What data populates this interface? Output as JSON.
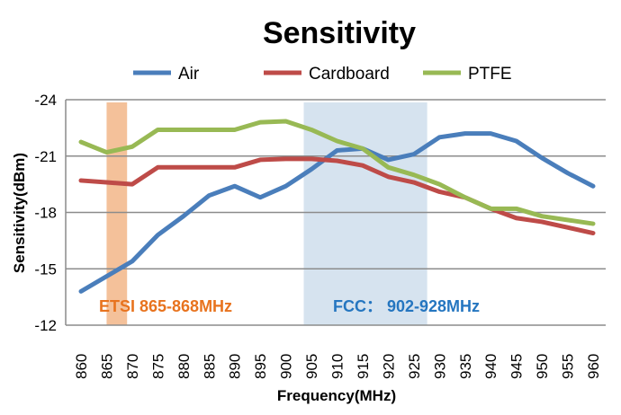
{
  "chart_data": {
    "type": "line",
    "title": "Sensitivity",
    "xlabel": "Frequency(MHz)",
    "ylabel": "Sensitivity(dBm)",
    "x": [
      860,
      865,
      870,
      875,
      880,
      885,
      890,
      895,
      900,
      905,
      910,
      915,
      920,
      925,
      930,
      935,
      940,
      945,
      950,
      955,
      960
    ],
    "x_tick_labels": [
      "860",
      "865",
      "870",
      "875",
      "880",
      "885",
      "890",
      "895",
      "900",
      "905",
      "910",
      "915",
      "920",
      "925",
      "930",
      "935",
      "940",
      "945",
      "950",
      "955",
      "960"
    ],
    "y_ticks": [
      -24,
      -21,
      -18,
      -15,
      -12
    ],
    "y_tick_labels": [
      "-24",
      "-21",
      "-18",
      "-15",
      "-12"
    ],
    "ylim": [
      -12,
      -24
    ],
    "grid": true,
    "legend_position": "top",
    "series": [
      {
        "name": "Air",
        "color": "#4a7ebb",
        "values": [
          -13.8,
          -14.6,
          -15.4,
          -16.8,
          -17.8,
          -18.9,
          -19.4,
          -18.8,
          -19.4,
          -20.3,
          -21.3,
          -21.4,
          -20.8,
          -21.1,
          -22.0,
          -22.2,
          -22.2,
          -21.8,
          -20.9,
          -20.1,
          -19.4
        ]
      },
      {
        "name": "Cardboard",
        "color": "#be4b48",
        "values": [
          -19.7,
          -19.6,
          -19.5,
          -20.4,
          -20.4,
          -20.4,
          -20.4,
          -20.8,
          -20.85,
          -20.85,
          -20.75,
          -20.5,
          -19.9,
          -19.6,
          -19.1,
          -18.8,
          -18.2,
          -17.7,
          -17.5,
          -17.2,
          -16.9
        ]
      },
      {
        "name": "PTFE",
        "color": "#98b954",
        "values": [
          -21.75,
          -21.2,
          -21.5,
          -22.4,
          -22.4,
          -22.4,
          -22.4,
          -22.8,
          -22.85,
          -22.4,
          -21.8,
          -21.4,
          -20.4,
          -20.0,
          -19.5,
          -18.8,
          -18.2,
          -18.2,
          -17.8,
          -17.6,
          -17.4
        ]
      }
    ],
    "bands": [
      {
        "label": "ETSI 865-868MHz",
        "from": 865,
        "to": 869,
        "fill": "#f4c19a",
        "text_color": "#e8731e"
      },
      {
        "label": "FCC： 902-928MHz",
        "from": 903.5,
        "to": 927.6,
        "fill": "#d6e3ef",
        "text_color": "#2576c0"
      }
    ]
  }
}
